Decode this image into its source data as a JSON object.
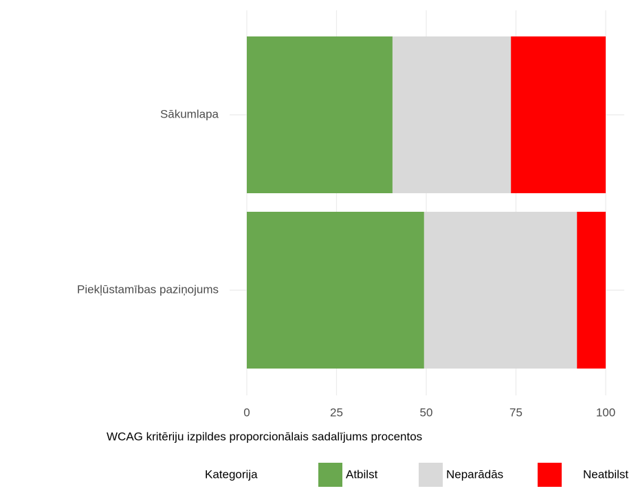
{
  "chart_data": {
    "type": "stacked-barh",
    "x_label": "WCAG kritēriju izpildes proporcionālais sadalījums procentos",
    "categories": [
      "Sākumlapa",
      "Piekļūstamības paziņojums"
    ],
    "series": [
      {
        "name": "Atbilst",
        "color": "#6aa84f",
        "values": [
          40.6,
          49.4
        ]
      },
      {
        "name": "Neparādās",
        "color": "#d9d9d9",
        "values": [
          33.0,
          42.6
        ]
      },
      {
        "name": "Neatbilst",
        "color": "#ff0000",
        "values": [
          26.4,
          8.0
        ]
      }
    ],
    "xlim": [
      0,
      100
    ],
    "xticks": [
      0,
      25,
      50,
      75,
      100
    ],
    "grid": true,
    "legend_title": "Kategorija",
    "legend_position": "bottom"
  }
}
